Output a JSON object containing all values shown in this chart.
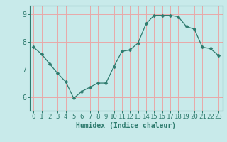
{
  "x": [
    0,
    1,
    2,
    3,
    4,
    5,
    6,
    7,
    8,
    9,
    10,
    11,
    12,
    13,
    14,
    15,
    16,
    17,
    18,
    19,
    20,
    21,
    22,
    23
  ],
  "y": [
    7.8,
    7.55,
    7.2,
    6.85,
    6.55,
    5.95,
    6.2,
    6.35,
    6.5,
    6.5,
    7.1,
    7.65,
    7.7,
    7.95,
    8.65,
    8.95,
    8.95,
    8.95,
    8.9,
    8.55,
    8.45,
    7.8,
    7.75,
    7.5
  ],
  "line_color": "#2e7b6e",
  "marker": "D",
  "marker_size": 2.5,
  "bg_color": "#c8eaea",
  "grid_color": "#e8a8a8",
  "axis_color": "#2e7b6e",
  "xlabel": "Humidex (Indice chaleur)",
  "ylim": [
    5.5,
    9.3
  ],
  "xlim": [
    -0.5,
    23.5
  ],
  "yticks": [
    6,
    7,
    8,
    9
  ],
  "xticks": [
    0,
    1,
    2,
    3,
    4,
    5,
    6,
    7,
    8,
    9,
    10,
    11,
    12,
    13,
    14,
    15,
    16,
    17,
    18,
    19,
    20,
    21,
    22,
    23
  ],
  "label_fontsize": 7,
  "tick_fontsize": 6.5
}
